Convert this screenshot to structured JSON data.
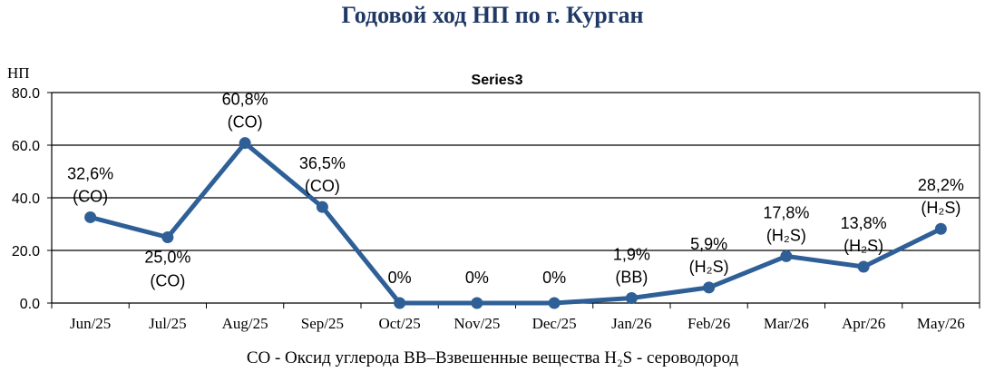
{
  "title": "Годовой ход НП по г. Курган",
  "footer": "CO - Оксид углерода  ВВ–Взвешенные вещества H₂S - сероводород",
  "chart_data": {
    "type": "line",
    "title": "Годовой ход НП по г. Курган",
    "ylabel": "НП",
    "xlabel": "",
    "ylim": [
      0,
      80
    ],
    "yticks": [
      "0.0",
      "20.0",
      "40.0",
      "60.0",
      "80.0"
    ],
    "grid": true,
    "categories": [
      "Jun/25",
      "Jul/25",
      "Aug/25",
      "Sep/25",
      "Oct/25",
      "Nov/25",
      "Dec/25",
      "Jan/26",
      "Feb/26",
      "Mar/26",
      "Apr/26",
      "May/26"
    ],
    "series": [
      {
        "name": "Series3",
        "color": "#2e5f97",
        "values": [
          32.6,
          25.0,
          60.8,
          36.5,
          0,
          0,
          0,
          1.9,
          5.9,
          17.8,
          13.8,
          28.2
        ],
        "labels": [
          "32,6%",
          "25,0%",
          "60,8%",
          "36,5%",
          "0%",
          "0%",
          "0%",
          "1,9%",
          "5,9%",
          "17,8%",
          "13,8%",
          "28,2%"
        ],
        "pollutants": [
          "(CO)",
          "(CO)",
          "(CO)",
          "(CO)",
          "",
          "",
          "",
          "(BB)",
          "(H₂S)",
          "(H₂S)",
          "(H₂S)",
          "(H₂S)"
        ]
      }
    ]
  }
}
